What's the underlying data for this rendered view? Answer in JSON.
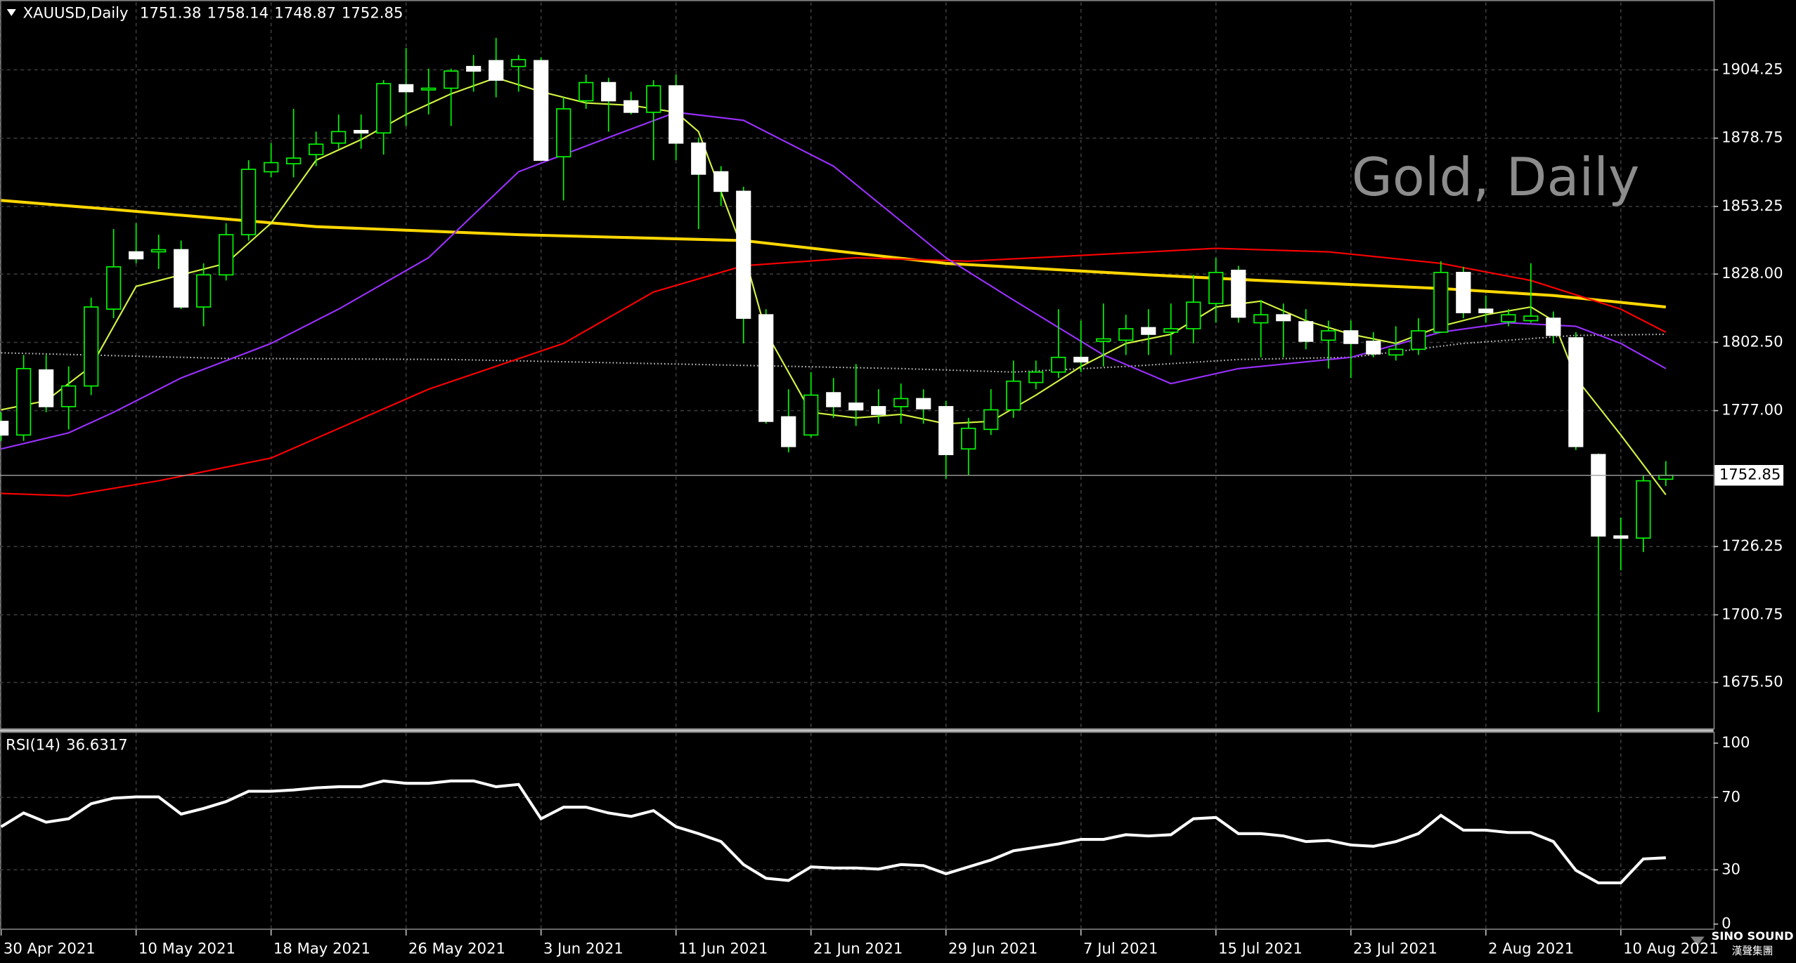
{
  "chart_data": {
    "type": "candlestick",
    "title": "XAUUSD,Daily",
    "watermark": "Gold, Daily",
    "logo": {
      "text": "SINO SOUND",
      "subtext": "漢聲集團"
    },
    "categories": [
      "30 Apr 2021",
      null,
      null,
      null,
      null,
      null,
      "10 May 2021",
      null,
      null,
      null,
      null,
      null,
      "18 May 2021",
      null,
      null,
      null,
      null,
      null,
      "26 May 2021",
      null,
      null,
      null,
      null,
      null,
      "3 Jun 2021",
      null,
      null,
      null,
      null,
      null,
      "11 Jun 2021",
      null,
      null,
      null,
      null,
      null,
      "21 Jun 2021",
      null,
      null,
      null,
      null,
      null,
      "29 Jun 2021",
      null,
      null,
      null,
      null,
      null,
      "7 Jul 2021",
      null,
      null,
      null,
      null,
      null,
      "15 Jul 2021",
      null,
      null,
      null,
      null,
      null,
      "23 Jul 2021",
      null,
      null,
      null,
      null,
      null,
      "2 Aug 2021",
      null,
      null,
      null,
      null,
      null,
      "10 Aug 2021",
      null,
      null
    ],
    "open": [
      1773.0,
      1767.9,
      1792.2,
      1778.5,
      1786.2,
      1814.9,
      1836.3,
      1836.3,
      1837.1,
      1815.7,
      1827.7,
      1842.7,
      1866.2,
      1869.2,
      1872.6,
      1876.9,
      1881.6,
      1880.7,
      1898.7,
      1897.0,
      1897.4,
      1905.5,
      1907.7,
      1905.5,
      1907.7,
      1871.8,
      1892.7,
      1899.5,
      1892.7,
      1888.4,
      1898.3,
      1876.9,
      1866.2,
      1858.9,
      1812.8,
      1774.7,
      1767.9,
      1783.7,
      1779.8,
      1778.5,
      1778.5,
      1781.5,
      1778.5,
      1762.7,
      1770.0,
      1777.3,
      1787.5,
      1791.4,
      1796.9,
      1802.9,
      1803.3,
      1808.0,
      1806.3,
      1807.6,
      1817.0,
      1829.4,
      1809.8,
      1812.8,
      1810.2,
      1803.3,
      1806.8,
      1802.9,
      1797.8,
      1799.9,
      1806.3,
      1828.6,
      1814.9,
      1810.2,
      1810.6,
      1811.5,
      1804.2,
      1760.6,
      1730.2,
      1729.4,
      1751.38
    ],
    "high": [
      1776.4,
      1797.8,
      1797.8,
      1793.5,
      1819.2,
      1844.8,
      1847.0,
      1842.7,
      1840.5,
      1832.0,
      1847.0,
      1870.5,
      1876.9,
      1889.7,
      1881.2,
      1887.6,
      1887.6,
      1900.4,
      1912.4,
      1904.7,
      1904.7,
      1909.8,
      1916.2,
      1909.8,
      1909.0,
      1894.0,
      1902.5,
      1901.3,
      1896.1,
      1900.4,
      1902.5,
      1879.0,
      1868.3,
      1860.6,
      1814.9,
      1785.0,
      1791.4,
      1789.2,
      1794.4,
      1785.0,
      1787.1,
      1785.0,
      1780.7,
      1774.3,
      1785.0,
      1795.7,
      1795.7,
      1814.9,
      1810.6,
      1817.0,
      1812.8,
      1814.9,
      1817.0,
      1827.7,
      1834.1,
      1831.1,
      1818.3,
      1817.0,
      1814.9,
      1810.6,
      1810.6,
      1806.3,
      1808.5,
      1811.5,
      1832.8,
      1830.7,
      1820.0,
      1814.9,
      1832.0,
      1814.0,
      1806.3,
      1761.0,
      1737.1,
      1752.9,
      1758.14
    ],
    "low": [
      1765.7,
      1765.7,
      1776.4,
      1770.0,
      1782.8,
      1811.5,
      1832.0,
      1829.9,
      1814.9,
      1808.5,
      1825.6,
      1840.5,
      1864.1,
      1864.1,
      1868.3,
      1874.8,
      1874.8,
      1872.6,
      1883.3,
      1887.6,
      1883.3,
      1896.1,
      1894.0,
      1896.1,
      1870.5,
      1855.5,
      1889.7,
      1881.2,
      1887.6,
      1870.5,
      1870.5,
      1844.8,
      1853.4,
      1802.1,
      1772.1,
      1761.4,
      1767.0,
      1774.3,
      1771.3,
      1772.1,
      1772.1,
      1772.1,
      1751.6,
      1752.9,
      1767.9,
      1774.3,
      1785.0,
      1789.2,
      1791.4,
      1793.5,
      1797.8,
      1797.8,
      1797.8,
      1802.1,
      1809.8,
      1809.8,
      1796.9,
      1796.9,
      1799.9,
      1792.7,
      1789.2,
      1796.9,
      1795.7,
      1797.8,
      1806.3,
      1811.5,
      1809.8,
      1808.5,
      1809.8,
      1802.1,
      1762.3,
      1664.4,
      1717.4,
      1724.2,
      1748.87
    ],
    "close": [
      1767.9,
      1792.7,
      1778.5,
      1786.2,
      1815.7,
      1830.7,
      1833.7,
      1837.1,
      1815.7,
      1827.7,
      1842.7,
      1867.1,
      1869.6,
      1871.3,
      1876.5,
      1881.2,
      1880.7,
      1899.1,
      1896.1,
      1897.4,
      1903.8,
      1903.8,
      1900.4,
      1908.1,
      1870.5,
      1889.7,
      1899.5,
      1892.7,
      1888.4,
      1898.3,
      1876.9,
      1865.3,
      1858.9,
      1811.5,
      1773.0,
      1763.6,
      1782.8,
      1778.5,
      1777.3,
      1775.6,
      1781.5,
      1777.7,
      1760.6,
      1770.4,
      1777.3,
      1788.0,
      1791.4,
      1796.9,
      1795.2,
      1803.8,
      1807.6,
      1805.5,
      1807.6,
      1817.5,
      1828.6,
      1811.9,
      1812.8,
      1810.6,
      1802.9,
      1806.8,
      1802.1,
      1798.2,
      1799.9,
      1806.8,
      1828.6,
      1813.6,
      1813.6,
      1812.8,
      1812.3,
      1805.1,
      1763.6,
      1730.2,
      1729.4,
      1750.8,
      1752.85
    ],
    "up_color": "#000000",
    "down_color": "#ffffff",
    "wick_color": "#00ff00",
    "ylim": [
      1657.97,
      1929.48
    ],
    "yticks": [
      1904.25,
      1878.75,
      1853.25,
      {
        "value": 1828,
        "label": "1828.00"
      },
      {
        "value": 1802.5,
        "label": "1802.50"
      },
      {
        "value": 1777,
        "label": "1777.00"
      },
      1726.25,
      1700.75,
      {
        "value": 1675.5,
        "label": "1675.50"
      }
    ],
    "grid": true,
    "overlays": [
      {
        "color": "#c0c0c0",
        "style": "dotted",
        "x": [
          0,
          10,
          20,
          30,
          40,
          45,
          50,
          55,
          60,
          65,
          70,
          74
        ],
        "values": [
          1798.6,
          1796.5,
          1796.1,
          1794.4,
          1792.7,
          1791.4,
          1793.5,
          1796.1,
          1796.9,
          1802.1,
          1805.1,
          1805.5
        ]
      },
      {
        "color": "#ffd700",
        "style": "solid",
        "width": 2.5,
        "x": [
          0,
          5,
          14,
          23,
          33,
          42,
          51,
          56,
          64,
          69,
          74
        ],
        "values": [
          1855.5,
          1852.1,
          1845.7,
          1842.7,
          1840.5,
          1832.0,
          1827.7,
          1825.6,
          1822.6,
          1820.0,
          1815.7
        ]
      },
      {
        "color": "#ff0000",
        "style": "solid",
        "x": [
          0,
          3,
          7,
          12,
          19,
          25,
          29,
          33,
          38,
          43,
          49,
          54,
          59,
          64,
          68,
          72,
          74
        ],
        "values": [
          1746.1,
          1745.2,
          1750.8,
          1759.3,
          1785.0,
          1802.1,
          1821.3,
          1831.1,
          1834.1,
          1832.8,
          1835.4,
          1837.6,
          1836.3,
          1832.0,
          1825.6,
          1814.9,
          1806.3
        ]
      },
      {
        "color": "#9b30ff",
        "style": "solid",
        "x": [
          0,
          3,
          5,
          8,
          12,
          15,
          19,
          23,
          27,
          30,
          33,
          37,
          42,
          45,
          49,
          52,
          55,
          60,
          64,
          67,
          70,
          72,
          74
        ],
        "values": [
          1762.7,
          1768.7,
          1776.4,
          1789.2,
          1802.1,
          1814.9,
          1834.1,
          1866.2,
          1879.0,
          1888.4,
          1885.4,
          1868.3,
          1834.1,
          1818.3,
          1797.8,
          1787.1,
          1792.7,
          1796.9,
          1806.3,
          1809.8,
          1808.5,
          1802.1,
          1792.7
        ]
      },
      {
        "color": "#d4f542",
        "style": "solid",
        "x": [
          0,
          2,
          4,
          6,
          8,
          10,
          12,
          14,
          16,
          18,
          20,
          22,
          24,
          26,
          28,
          30,
          31,
          33,
          34,
          36,
          38,
          40,
          42,
          44,
          46,
          48,
          50,
          52,
          54,
          56,
          58,
          60,
          62,
          64,
          66,
          68,
          69,
          70,
          72,
          74
        ],
        "values": [
          1777.3,
          1780.7,
          1793.5,
          1823.4,
          1827.7,
          1832.0,
          1847.0,
          1870.5,
          1878.2,
          1887.6,
          1895.3,
          1901.3,
          1896.1,
          1891.9,
          1891.0,
          1888.4,
          1881.2,
          1836.3,
          1806.3,
          1776.4,
          1774.3,
          1775.6,
          1772.1,
          1773.0,
          1782.8,
          1793.5,
          1802.1,
          1805.5,
          1815.7,
          1817.9,
          1810.6,
          1805.5,
          1802.1,
          1808.5,
          1812.8,
          1815.7,
          1810.6,
          1789.2,
          1767.9,
          1745.6
        ]
      }
    ],
    "rsi": {
      "name": "RSI(14)",
      "color": "#ffffff",
      "values": [
        53.8,
        61.4,
        56.3,
        58.2,
        66.5,
        69.6,
        70.3,
        70.3,
        60.8,
        63.9,
        67.7,
        73.4,
        73.4,
        74.1,
        75.3,
        75.9,
        75.9,
        79.1,
        77.8,
        77.8,
        79.1,
        79.1,
        75.9,
        77.2,
        58.2,
        64.6,
        64.6,
        61.4,
        59.5,
        62.7,
        53.8,
        50.0,
        45.6,
        32.9,
        25.3,
        24.1,
        31.6,
        31.0,
        31.0,
        30.4,
        32.9,
        32.3,
        27.8,
        31.6,
        35.4,
        40.5,
        42.4,
        44.3,
        46.8,
        46.8,
        49.4,
        48.7,
        49.4,
        58.2,
        58.9,
        50.0,
        50.0,
        48.7,
        45.6,
        46.2,
        43.7,
        43.0,
        45.6,
        50.0,
        60.1,
        51.9,
        51.9,
        50.6,
        50.6,
        45.6,
        29.7,
        22.8,
        22.8,
        36.0,
        36.6317
      ],
      "ylim": [
        0,
        100
      ],
      "yticks": [
        0,
        30,
        70,
        100
      ]
    }
  }
}
